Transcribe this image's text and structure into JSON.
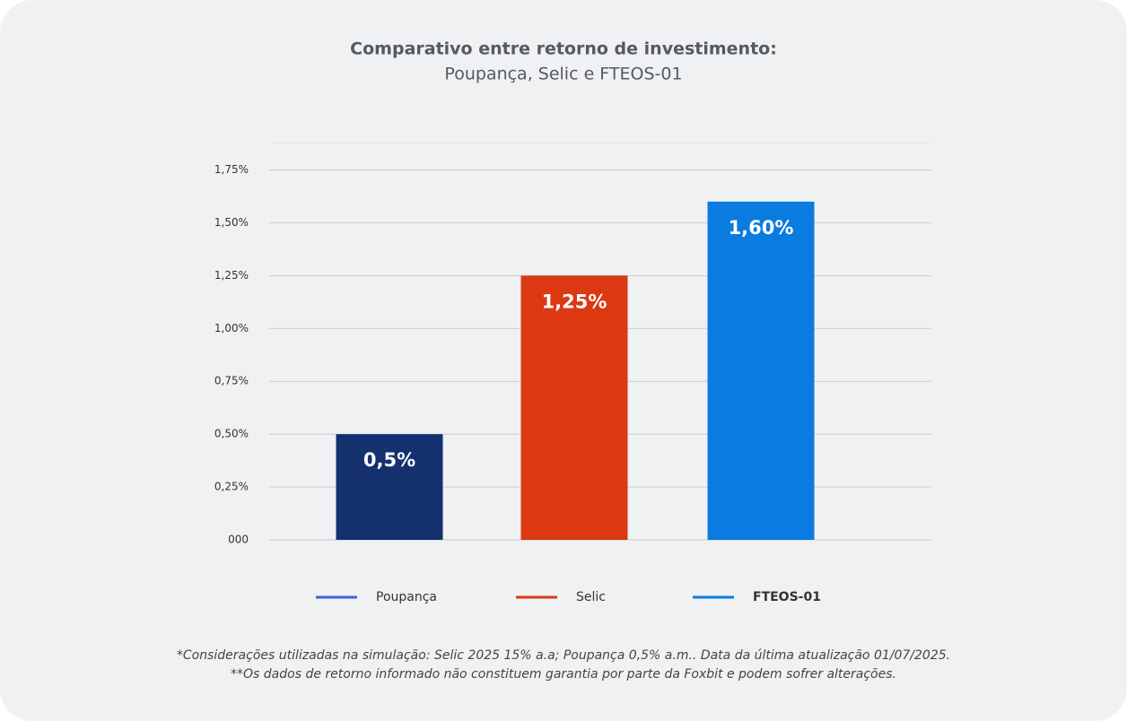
{
  "chart_data": {
    "type": "bar",
    "title": "Comparativo entre retorno de investimento:",
    "subtitle": "Poupança, Selic e FTEOS-01",
    "categories": [
      "Poupança",
      "Selic",
      "FTEOS-01"
    ],
    "values": [
      0.5,
      1.25,
      1.6
    ],
    "value_labels": [
      "0,5%",
      "1,25%",
      "1,60%"
    ],
    "colors": [
      "#14306e",
      "#dc3812",
      "#0a7be0"
    ],
    "legend_colors": [
      "#3a66d4",
      "#dc3812",
      "#0a7be0"
    ],
    "ylim": [
      0,
      1.875
    ],
    "yticks": [
      {
        "value": 0,
        "label": "000"
      },
      {
        "value": 0.25,
        "label": "0,25%"
      },
      {
        "value": 0.5,
        "label": "0,50%"
      },
      {
        "value": 0.75,
        "label": "0,75%"
      },
      {
        "value": 1,
        "label": "1,00%"
      },
      {
        "value": 1.25,
        "label": "1,25%"
      },
      {
        "value": 1.5,
        "label": "1,50%"
      },
      {
        "value": 1.75,
        "label": "1,75%"
      }
    ],
    "grid": true,
    "footnotes": [
      "*Considerações utilizadas na simulação: Selic 2025 15% a.a; Poupança 0,5% a.m.. Data da última atualização 01/07/2025.",
      "**Os dados de retorno informado não constituem garantia por parte da Foxbit e podem sofrer alterações."
    ]
  }
}
